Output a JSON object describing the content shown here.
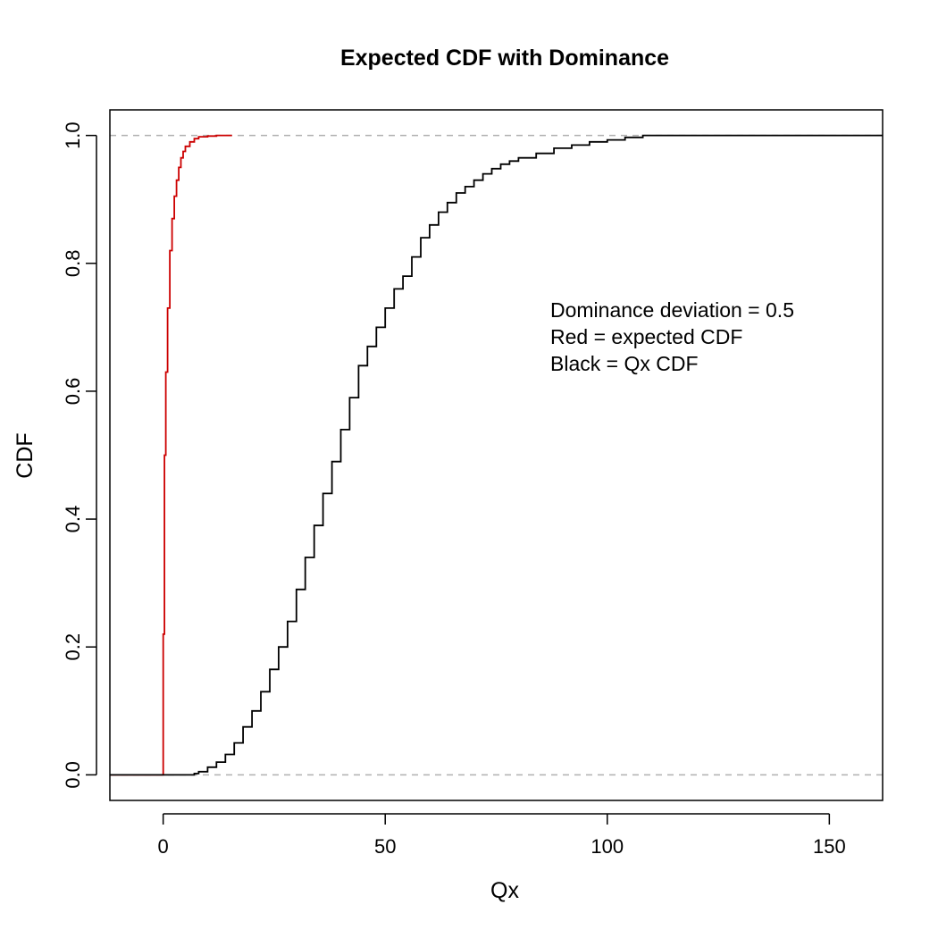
{
  "chart_data": {
    "type": "line",
    "title": "Expected CDF with Dominance",
    "xlabel": "Qx",
    "ylabel": "CDF",
    "xlim": [
      -12,
      162
    ],
    "ylim": [
      -0.04,
      1.04
    ],
    "x_ticks": [
      0,
      50,
      100,
      150
    ],
    "x_tick_labels": [
      "0",
      "50",
      "100",
      "150"
    ],
    "y_ticks": [
      0,
      0.2,
      0.4,
      0.6,
      0.8,
      1.0
    ],
    "y_tick_labels": [
      "0.0",
      "0.2",
      "0.4",
      "0.6",
      "0.8",
      "1.0"
    ],
    "reference_lines": [
      {
        "y": 0,
        "style": "dashed",
        "color": "#b0b0b0"
      },
      {
        "y": 1,
        "style": "dashed",
        "color": "#b0b0b0"
      }
    ],
    "grid": false,
    "series": [
      {
        "color": "#cc0000",
        "style": "step",
        "x": [
          -12,
          0,
          0,
          0.3,
          0.6,
          1,
          1.5,
          2,
          2.5,
          3,
          3.5,
          4,
          4.5,
          5,
          6,
          7,
          8,
          10,
          12,
          15.5
        ],
        "y": [
          0,
          0,
          0.22,
          0.5,
          0.63,
          0.73,
          0.82,
          0.87,
          0.905,
          0.93,
          0.95,
          0.965,
          0.975,
          0.983,
          0.99,
          0.995,
          0.998,
          0.999,
          1.0,
          1.0
        ]
      },
      {
        "color": "#000000",
        "style": "step",
        "x": [
          -12,
          0,
          5,
          7,
          8,
          10,
          12,
          14,
          16,
          18,
          20,
          22,
          24,
          26,
          28,
          30,
          32,
          34,
          36,
          38,
          40,
          42,
          44,
          46,
          48,
          50,
          52,
          54,
          56,
          58,
          60,
          62,
          64,
          66,
          68,
          70,
          72,
          74,
          76,
          78,
          80,
          84,
          88,
          92,
          96,
          100,
          104,
          108,
          120,
          140,
          162
        ],
        "y": [
          0,
          0,
          0,
          0.002,
          0.005,
          0.012,
          0.02,
          0.032,
          0.05,
          0.075,
          0.1,
          0.13,
          0.165,
          0.2,
          0.24,
          0.29,
          0.34,
          0.39,
          0.44,
          0.49,
          0.54,
          0.59,
          0.64,
          0.67,
          0.7,
          0.73,
          0.76,
          0.78,
          0.81,
          0.84,
          0.86,
          0.88,
          0.895,
          0.91,
          0.92,
          0.93,
          0.94,
          0.948,
          0.955,
          0.96,
          0.965,
          0.972,
          0.98,
          0.985,
          0.99,
          0.993,
          0.997,
          1.0,
          1.0,
          1.0,
          1.0
        ]
      }
    ],
    "annotations": [
      "Dominance deviation = 0.5",
      "Red = expected CDF",
      "Black = Qx CDF"
    ]
  }
}
